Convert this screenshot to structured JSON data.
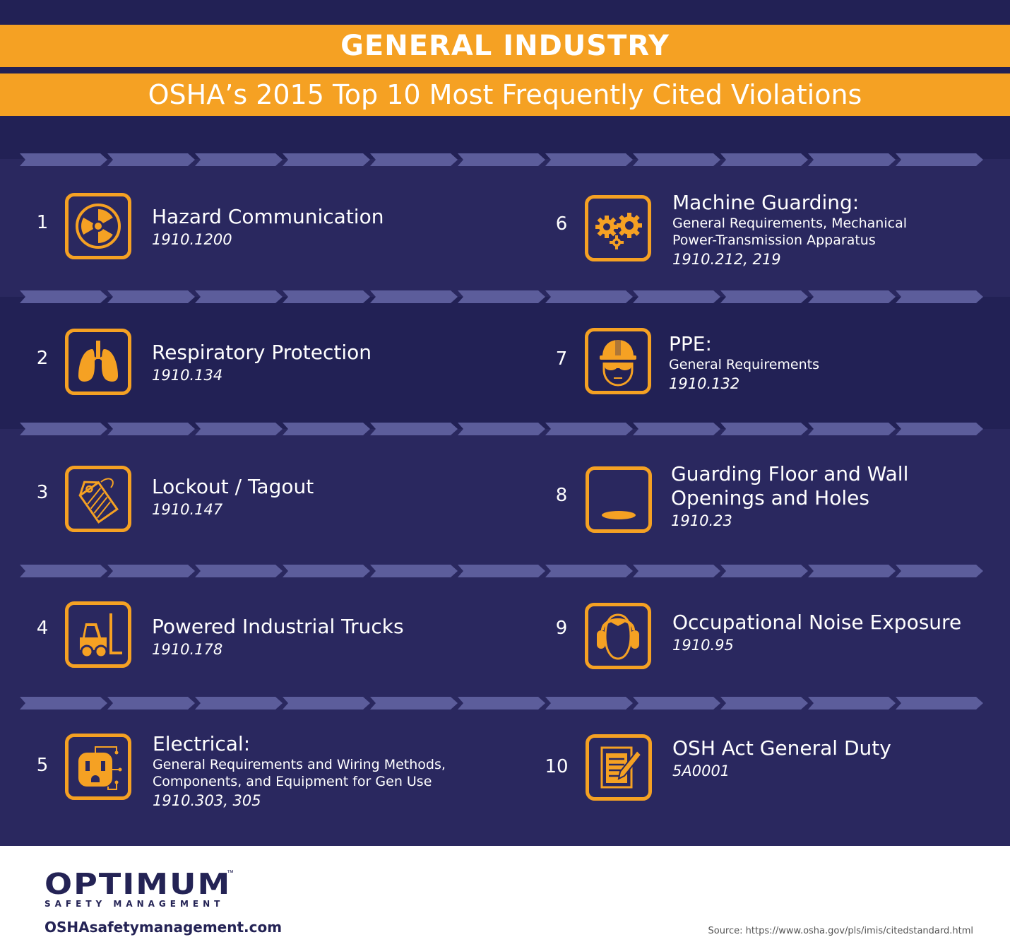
{
  "header": {
    "title": "GENERAL INDUSTRY",
    "subtitle": "OSHA’s 2015 Top 10 Most Frequently Cited Violations"
  },
  "colors": {
    "background": "#222155",
    "accent": "#f5a123",
    "divider": "#5c5d9b",
    "text": "#ffffff",
    "brand": "#242355"
  },
  "violations": [
    {
      "rank": "1",
      "title": "Hazard Communication",
      "subtitle": "",
      "code": "1910.1200",
      "icon": "radiation-icon"
    },
    {
      "rank": "2",
      "title": "Respiratory Protection",
      "subtitle": "",
      "code": "1910.134",
      "icon": "lungs-icon"
    },
    {
      "rank": "3",
      "title": "Lockout / Tagout",
      "subtitle": "",
      "code": "1910.147",
      "icon": "tag-icon"
    },
    {
      "rank": "4",
      "title": "Powered Industrial Trucks",
      "subtitle": "",
      "code": "1910.178",
      "icon": "forklift-icon"
    },
    {
      "rank": "5",
      "title": "Electrical:",
      "subtitle": "General Requirements and Wiring Methods,",
      "subtitle2": "Components, and Equipment for Gen Use",
      "code": "1910.303, 305",
      "icon": "outlet-icon"
    },
    {
      "rank": "6",
      "title": "Machine Guarding:",
      "subtitle": "General Requirements, Mechanical",
      "subtitle2": "Power-Transmission Apparatus",
      "code": "1910.212, 219",
      "icon": "gears-icon"
    },
    {
      "rank": "7",
      "title": "PPE:",
      "subtitle": "General Requirements",
      "code": "1910.132",
      "icon": "hardhat-icon"
    },
    {
      "rank": "8",
      "title": "Guarding Floor and Wall",
      "title2": "Openings and Holes",
      "code": "1910.23",
      "icon": "floor-hole-icon"
    },
    {
      "rank": "9",
      "title": "Occupational Noise Exposure",
      "subtitle": "",
      "code": "1910.95",
      "icon": "earmuffs-icon"
    },
    {
      "rank": "10",
      "title": "OSH Act General Duty",
      "subtitle": "",
      "code": "5A0001",
      "icon": "document-icon"
    }
  ],
  "footer": {
    "logo": "OPTIMUM",
    "logo_tm": "™",
    "logo_sub": "SAFETY MANAGEMENT",
    "url": "OSHAsafetymanagement.com",
    "source": "Source: https://www.osha.gov/pls/imis/citedstandard.html"
  }
}
